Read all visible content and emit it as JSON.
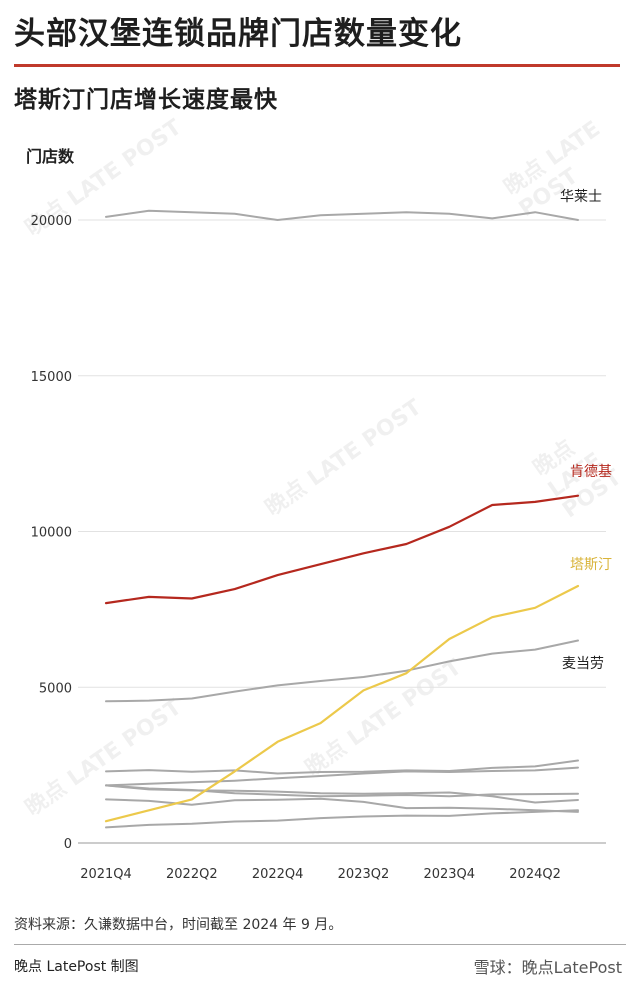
{
  "header": {
    "title": "头部汉堡连锁品牌门店数量变化",
    "subtitle": "塔斯汀门店增长速度最快"
  },
  "footer": {
    "source": "资料来源：久谦数据中台，时间截至 2024 年 9 月。",
    "credit": "晚点 LatePost 制图",
    "brand": "雪球：晚点LatePost"
  },
  "watermark": "晚点 LATE POST",
  "colors": {
    "kfc": "#b5281e",
    "tastien": "#ecc94b",
    "gray": "#a8a8a8",
    "grid": "#e2e2e2",
    "accent_rule": "#c0392b"
  },
  "chart_data": {
    "type": "line",
    "ylabel": "门店数",
    "ylim": [
      0,
      20000
    ],
    "yticks": [
      0,
      5000,
      10000,
      15000,
      20000
    ],
    "x": [
      "2021Q4",
      "2022Q1",
      "2022Q2",
      "2022Q3",
      "2022Q4",
      "2023Q1",
      "2023Q2",
      "2023Q3",
      "2023Q4",
      "2024Q1",
      "2024Q2",
      "2024Q3"
    ],
    "xtick_labels": [
      "2021Q4",
      "2022Q2",
      "2022Q4",
      "2023Q2",
      "2023Q4",
      "2024Q2"
    ],
    "grid": "horizontal",
    "series": [
      {
        "name": "华莱士",
        "role": "gray",
        "labeled": true,
        "values": [
          20100,
          20300,
          20250,
          20200,
          20000,
          20150,
          20200,
          20250,
          20200,
          20050,
          20250,
          20000
        ]
      },
      {
        "name": "肯德基",
        "role": "kfc",
        "labeled": true,
        "values": [
          7700,
          7900,
          7850,
          8150,
          8600,
          8950,
          9300,
          9600,
          10150,
          10850,
          10950,
          11150
        ]
      },
      {
        "name": "塔斯汀",
        "role": "tastien",
        "labeled": true,
        "values": [
          700,
          1050,
          1400,
          2300,
          3250,
          3850,
          4900,
          5450,
          6550,
          7250,
          7550,
          8250
        ]
      },
      {
        "name": "麦当劳",
        "role": "gray",
        "labeled": true,
        "values": [
          4550,
          4570,
          4640,
          4860,
          5060,
          5200,
          5330,
          5530,
          5830,
          6080,
          6210,
          6500
        ]
      },
      {
        "name": "",
        "role": "gray",
        "labeled": false,
        "values": [
          2300,
          2340,
          2290,
          2330,
          2230,
          2280,
          2290,
          2330,
          2310,
          2410,
          2460,
          2650
        ]
      },
      {
        "name": "",
        "role": "gray",
        "labeled": false,
        "values": [
          1850,
          1900,
          1950,
          2000,
          2080,
          2150,
          2230,
          2300,
          2280,
          2310,
          2330,
          2420
        ]
      },
      {
        "name": "",
        "role": "gray",
        "labeled": false,
        "values": [
          1850,
          1750,
          1700,
          1600,
          1550,
          1500,
          1520,
          1540,
          1500,
          1560,
          1570,
          1580
        ]
      },
      {
        "name": "",
        "role": "gray",
        "labeled": false,
        "values": [
          1850,
          1720,
          1690,
          1680,
          1650,
          1600,
          1580,
          1600,
          1620,
          1500,
          1300,
          1380
        ]
      },
      {
        "name": "",
        "role": "gray",
        "labeled": false,
        "values": [
          1400,
          1350,
          1230,
          1370,
          1390,
          1420,
          1320,
          1120,
          1130,
          1100,
          1050,
          1000
        ]
      },
      {
        "name": "",
        "role": "gray",
        "labeled": false,
        "values": [
          500,
          580,
          620,
          690,
          720,
          800,
          850,
          880,
          870,
          950,
          1000,
          1050
        ]
      }
    ]
  }
}
